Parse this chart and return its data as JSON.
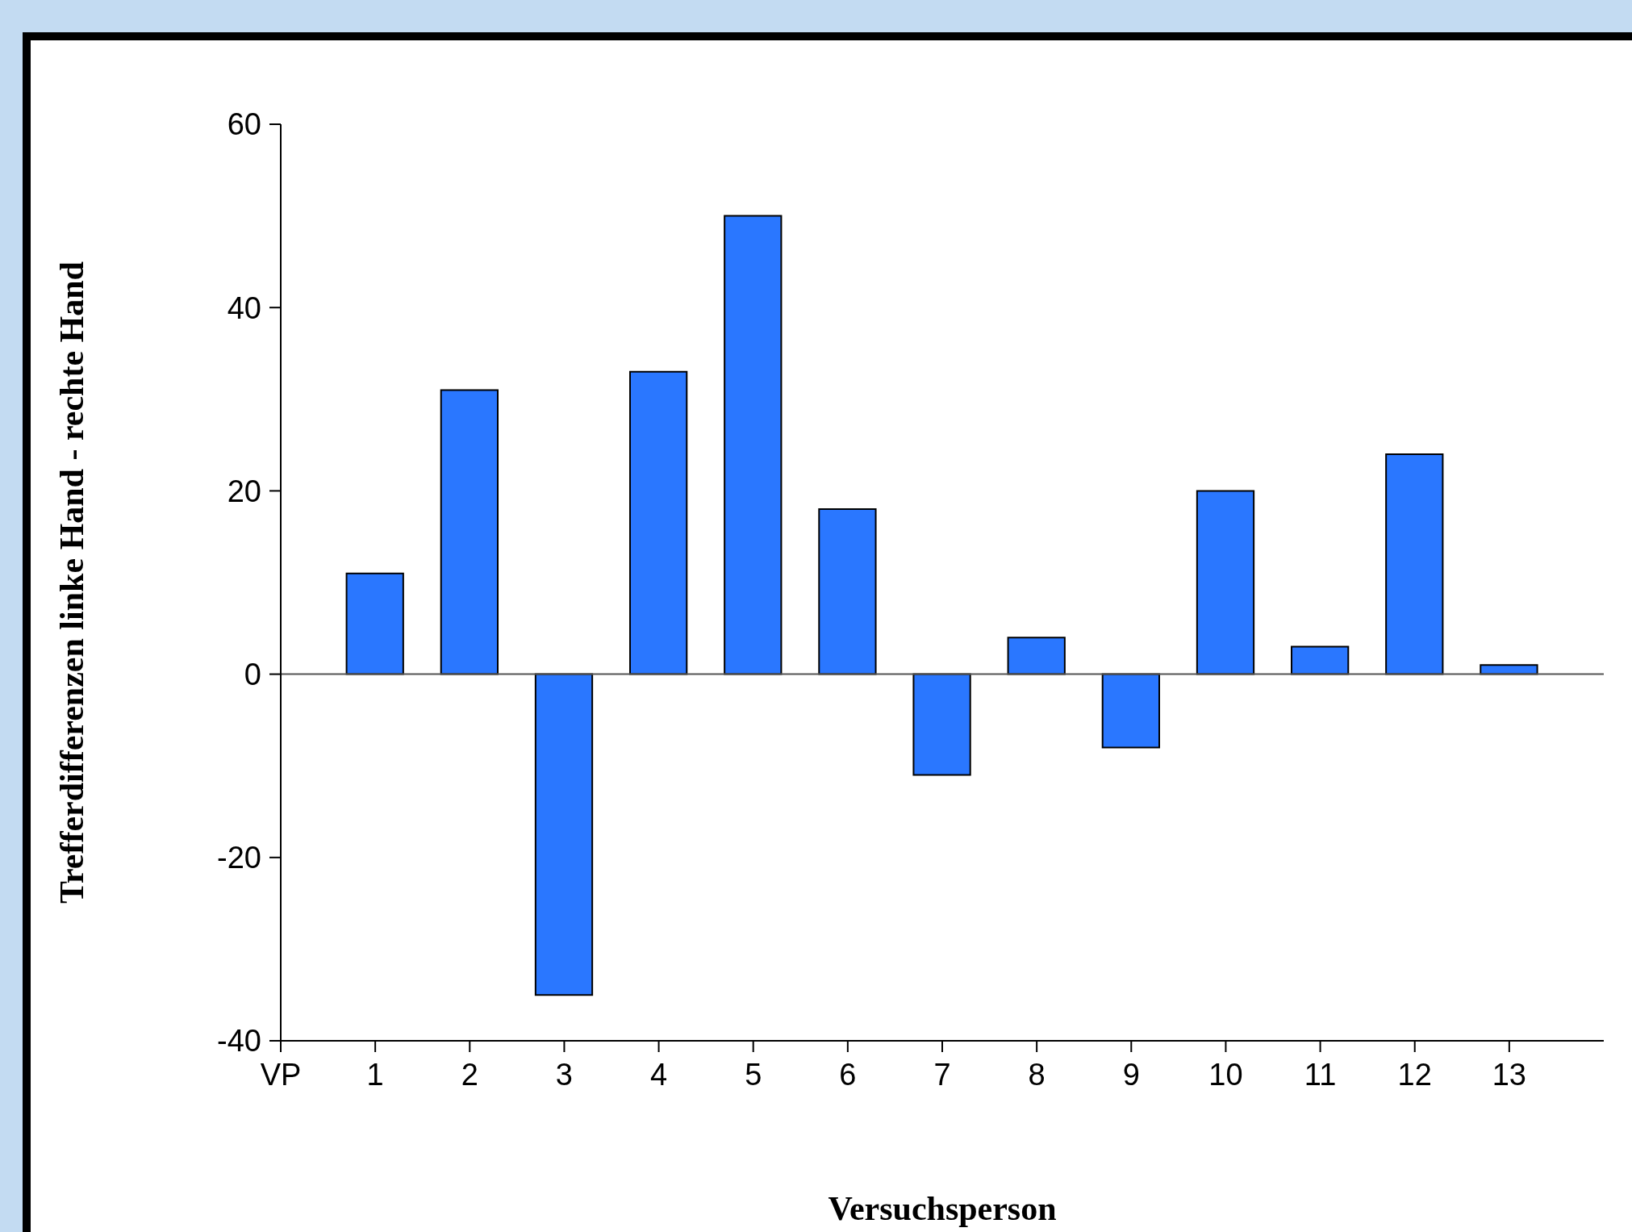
{
  "chart_data": {
    "type": "bar",
    "xlabel": "Versuchsperson",
    "ylabel": "Trefferdifferenzen linke Hand - rechte Hand",
    "x": [
      1,
      2,
      3,
      4,
      5,
      6,
      7,
      8,
      9,
      10,
      11,
      12,
      13
    ],
    "values": [
      11,
      31,
      -35,
      33,
      50,
      18,
      -11,
      4,
      -8,
      20,
      3,
      24,
      1
    ],
    "color": "#2a77ff",
    "xlim": [
      0,
      14
    ],
    "xticks": [
      {
        "value": 0,
        "label": "VP"
      },
      1,
      2,
      3,
      4,
      5,
      6,
      7,
      8,
      9,
      10,
      11,
      12,
      13
    ],
    "ylim": [
      -40,
      60
    ],
    "yticks": [
      -40,
      -20,
      0,
      20,
      40,
      60
    ],
    "ref_lines": [
      {
        "axis": "y",
        "value": 0
      }
    ],
    "grid": false,
    "legend": false
  }
}
